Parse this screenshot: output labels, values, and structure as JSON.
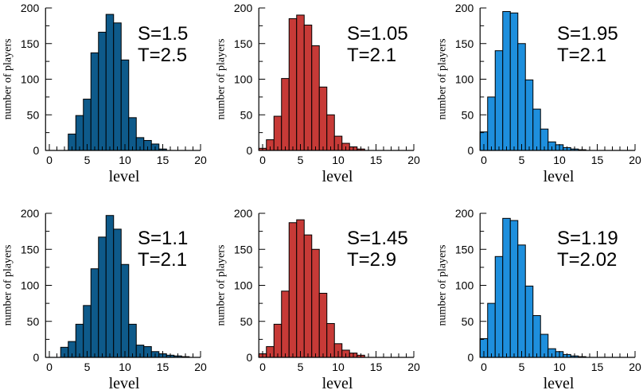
{
  "figure": {
    "description": "Six histograms of number of players per level for different S and T parameters"
  },
  "chart_data": [
    {
      "type": "bar",
      "xlabel": "level",
      "ylabel": "number of players",
      "xlim": [
        -0.5,
        20
      ],
      "ylim": [
        0,
        200
      ],
      "xticks": [
        "0",
        "5",
        "10",
        "15",
        "20"
      ],
      "yticks": [
        "0",
        "50",
        "100",
        "150",
        "200"
      ],
      "color": "#0e5a8a",
      "annotation": [
        "S=1.5",
        "T=2.5"
      ],
      "categories": [
        3,
        4,
        5,
        6,
        7,
        8,
        9,
        10,
        11,
        12,
        13,
        14,
        15
      ],
      "values": [
        23,
        49,
        72,
        137,
        166,
        191,
        179,
        127,
        46,
        18,
        14,
        9,
        2
      ]
    },
    {
      "type": "bar",
      "xlabel": "level",
      "ylabel": "number of players",
      "xlim": [
        -0.5,
        20
      ],
      "ylim": [
        0,
        200
      ],
      "xticks": [
        "0",
        "5",
        "10",
        "15",
        "20"
      ],
      "yticks": [
        "0",
        "50",
        "100",
        "150",
        "200"
      ],
      "color": "#c73a37",
      "annotation": [
        "S=1.05",
        "T=2.1"
      ],
      "categories": [
        0,
        1,
        2,
        3,
        4,
        5,
        6,
        7,
        8,
        9,
        10,
        11,
        12,
        13
      ],
      "values": [
        3,
        15,
        48,
        101,
        185,
        190,
        176,
        147,
        89,
        50,
        20,
        10,
        5,
        2
      ]
    },
    {
      "type": "bar",
      "xlabel": "level",
      "ylabel": "number of players",
      "xlim": [
        -0.5,
        20
      ],
      "ylim": [
        0,
        200
      ],
      "xticks": [
        "0",
        "5",
        "10",
        "15",
        "20"
      ],
      "yticks": [
        "0",
        "50",
        "100",
        "150",
        "200"
      ],
      "color": "#1e8fdd",
      "annotation": [
        "S=1.95",
        "T=2.1"
      ],
      "categories": [
        0,
        1,
        2,
        3,
        4,
        5,
        6,
        7,
        8,
        9,
        10,
        11,
        12,
        13
      ],
      "values": [
        26,
        75,
        140,
        195,
        193,
        150,
        99,
        58,
        30,
        12,
        8,
        4,
        2,
        1
      ]
    },
    {
      "type": "bar",
      "xlabel": "level",
      "ylabel": "number of players",
      "xlim": [
        -0.5,
        20
      ],
      "ylim": [
        0,
        200
      ],
      "xticks": [
        "0",
        "5",
        "10",
        "15",
        "20"
      ],
      "yticks": [
        "0",
        "50",
        "100",
        "150",
        "200"
      ],
      "color": "#0e5a8a",
      "annotation": [
        "S=1.1",
        "T=2.1"
      ],
      "categories": [
        2,
        3,
        4,
        5,
        6,
        7,
        8,
        9,
        10,
        11,
        12,
        13,
        14,
        15,
        16,
        17,
        18
      ],
      "values": [
        14,
        22,
        46,
        72,
        123,
        167,
        197,
        178,
        129,
        46,
        17,
        15,
        8,
        5,
        3,
        2,
        1
      ]
    },
    {
      "type": "bar",
      "xlabel": "level",
      "ylabel": "number of players",
      "xlim": [
        -0.5,
        20
      ],
      "ylim": [
        0,
        200
      ],
      "xticks": [
        "0",
        "5",
        "10",
        "15",
        "20"
      ],
      "yticks": [
        "0",
        "50",
        "100",
        "150",
        "200"
      ],
      "color": "#c73a37",
      "annotation": [
        "S=1.45",
        "T=2.9"
      ],
      "categories": [
        0,
        1,
        2,
        3,
        4,
        5,
        6,
        7,
        8,
        9,
        10,
        11,
        12,
        13
      ],
      "values": [
        5,
        15,
        46,
        92,
        187,
        191,
        170,
        150,
        89,
        47,
        19,
        10,
        6,
        3
      ]
    },
    {
      "type": "bar",
      "xlabel": "level",
      "ylabel": "number of players",
      "xlim": [
        -0.5,
        20
      ],
      "ylim": [
        0,
        200
      ],
      "xticks": [
        "0",
        "5",
        "10",
        "15",
        "20"
      ],
      "yticks": [
        "0",
        "50",
        "100",
        "150",
        "200"
      ],
      "color": "#1e8fdd",
      "annotation": [
        "S=1.19",
        "T=2.02"
      ],
      "categories": [
        0,
        1,
        2,
        3,
        4,
        5,
        6,
        7,
        8,
        9,
        10,
        11,
        12,
        13
      ],
      "values": [
        26,
        75,
        140,
        193,
        190,
        156,
        99,
        58,
        32,
        12,
        8,
        4,
        2,
        1
      ]
    }
  ]
}
